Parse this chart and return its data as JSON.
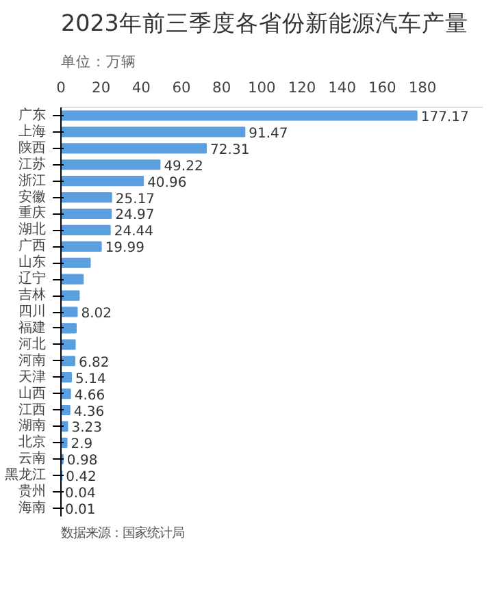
{
  "chart_data": {
    "type": "bar",
    "orientation": "horizontal",
    "title": "2023年前三季度各省份新能源汽车产量",
    "subtitle": "单位：万辆",
    "categories": [
      "广东",
      "上海",
      "陕西",
      "江苏",
      "浙江",
      "安徽",
      "重庆",
      "湖北",
      "广西",
      "山东",
      "辽宁",
      "吉林",
      "四川",
      "福建",
      "河北",
      "河南",
      "天津",
      "山西",
      "江西",
      "湖南",
      "北京",
      "云南",
      "黑龙江",
      "贵州",
      "海南"
    ],
    "values": [
      177.17,
      91.47,
      72.31,
      49.22,
      40.96,
      25.17,
      24.97,
      24.44,
      19.99,
      14.5,
      11,
      9,
      8.02,
      7.5,
      7,
      6.82,
      5.14,
      4.66,
      4.36,
      3.23,
      2.9,
      0.98,
      0.42,
      0.04,
      0.01
    ],
    "value_labels": [
      "177.17",
      "91.47",
      "72.31",
      "49.22",
      "40.96",
      "25.17",
      "24.97",
      "24.44",
      "19.99",
      null,
      null,
      null,
      "8.02",
      null,
      null,
      "6.82",
      "5.14",
      "4.66",
      "4.36",
      "3.23",
      "2.9",
      "0.98",
      "0.42",
      "0.04",
      "0.01"
    ],
    "color": "#5a9fe0",
    "xlim": [
      0,
      210
    ],
    "xticks": [
      0,
      20,
      40,
      60,
      80,
      100,
      120,
      140,
      160,
      180
    ],
    "grid": false,
    "annotations": [
      "数据来源：国家统计局"
    ]
  }
}
